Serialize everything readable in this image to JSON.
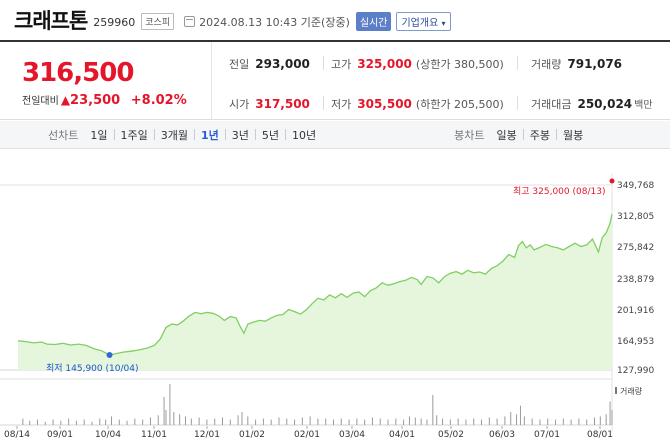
{
  "header": {
    "name": "크래프톤",
    "code": "259960",
    "market": "코스피",
    "datetime": "2024.08.13 10:43 기준(장중)",
    "realtime_label": "실시간",
    "overview_label": "기업개요"
  },
  "price": {
    "current": "316,500",
    "change_label": "전일대비",
    "change_arrow": "▲",
    "change_value": "23,500",
    "change_pct": "+8.02%"
  },
  "stats": {
    "prev_label": "전일",
    "prev_value": "293,000",
    "high_label": "고가",
    "high_value": "325,000",
    "upper_limit": "(상한가 380,500)",
    "volume_label": "거래량",
    "volume_value": "791,076",
    "open_label": "시가",
    "open_value": "317,500",
    "low_label": "저가",
    "low_value": "305,500",
    "lower_limit": "(하한가 205,500)",
    "amount_label": "거래대금",
    "amount_value": "250,024",
    "amount_unit": "백만"
  },
  "tabs": {
    "line_label": "선차트",
    "periods": [
      "1일",
      "1주일",
      "3개월",
      "1년",
      "3년",
      "5년",
      "10년"
    ],
    "active": "1년",
    "candle_label": "봉차트",
    "candles": [
      "일봉",
      "주봉",
      "월봉"
    ]
  },
  "colors": {
    "up": "#e4162b",
    "down": "#1a57c9",
    "line": "#7fcf63",
    "fill": "#e6f6dc"
  },
  "chart_data": {
    "type": "area",
    "yticks": [
      "349,768",
      "312,805",
      "275,842",
      "238,879",
      "201,916",
      "164,953",
      "127,990"
    ],
    "ylim": [
      127990,
      349768
    ],
    "xticks": [
      "08/14",
      "09/01",
      "10/04",
      "11/01",
      "12/01",
      "01/02",
      "02/01",
      "03/04",
      "04/01",
      "05/02",
      "06/03",
      "07/01",
      "08/01"
    ],
    "annotations": {
      "high": "최고 325,000 (08/13)",
      "low": "최저 145,900 (10/04)"
    },
    "volume_label": "거래량",
    "series": [
      {
        "values": [
          [
            0,
            163000
          ],
          [
            8,
            162000
          ],
          [
            16,
            160500
          ],
          [
            24,
            161500
          ],
          [
            30,
            159000
          ],
          [
            38,
            158500
          ],
          [
            46,
            160000
          ],
          [
            54,
            158000
          ],
          [
            62,
            159000
          ],
          [
            70,
            157500
          ],
          [
            78,
            153500
          ],
          [
            86,
            151000
          ],
          [
            94,
            146000
          ],
          [
            100,
            147500
          ],
          [
            108,
            149500
          ],
          [
            116,
            150500
          ],
          [
            124,
            152000
          ],
          [
            132,
            154000
          ],
          [
            140,
            157500
          ],
          [
            146,
            165000
          ],
          [
            152,
            179000
          ],
          [
            158,
            183000
          ],
          [
            164,
            182000
          ],
          [
            170,
            187000
          ],
          [
            176,
            193000
          ],
          [
            182,
            197000
          ],
          [
            188,
            195500
          ],
          [
            194,
            197000
          ],
          [
            200,
            196000
          ],
          [
            206,
            193000
          ],
          [
            212,
            187500
          ],
          [
            218,
            192000
          ],
          [
            224,
            190500
          ],
          [
            228,
            180500
          ],
          [
            232,
            172000
          ],
          [
            236,
            183000
          ],
          [
            242,
            185500
          ],
          [
            248,
            187500
          ],
          [
            254,
            186500
          ],
          [
            260,
            190500
          ],
          [
            266,
            193500
          ],
          [
            272,
            194500
          ],
          [
            278,
            200500
          ],
          [
            284,
            198000
          ],
          [
            290,
            195000
          ],
          [
            296,
            200000
          ],
          [
            302,
            207500
          ],
          [
            308,
            214000
          ],
          [
            314,
            212000
          ],
          [
            320,
            218000
          ],
          [
            326,
            214500
          ],
          [
            332,
            219500
          ],
          [
            338,
            215000
          ],
          [
            344,
            220000
          ],
          [
            350,
            221500
          ],
          [
            356,
            216000
          ],
          [
            362,
            223000
          ],
          [
            368,
            226500
          ],
          [
            374,
            232500
          ],
          [
            380,
            229500
          ],
          [
            386,
            231500
          ],
          [
            392,
            234000
          ],
          [
            398,
            235500
          ],
          [
            404,
            239000
          ],
          [
            410,
            236500
          ],
          [
            414,
            230500
          ],
          [
            420,
            240000
          ],
          [
            426,
            238500
          ],
          [
            432,
            232500
          ],
          [
            438,
            240000
          ],
          [
            444,
            244000
          ],
          [
            450,
            246000
          ],
          [
            456,
            243000
          ],
          [
            462,
            247500
          ],
          [
            468,
            244500
          ],
          [
            474,
            245500
          ],
          [
            480,
            243000
          ],
          [
            486,
            249500
          ],
          [
            492,
            253000
          ],
          [
            498,
            258500
          ],
          [
            504,
            266500
          ],
          [
            510,
            263000
          ],
          [
            514,
            277000
          ],
          [
            518,
            282000
          ],
          [
            522,
            274500
          ],
          [
            526,
            278000
          ],
          [
            530,
            272000
          ],
          [
            536,
            275000
          ],
          [
            542,
            278500
          ],
          [
            548,
            276000
          ],
          [
            554,
            274500
          ],
          [
            560,
            272000
          ],
          [
            566,
            276000
          ],
          [
            572,
            280000
          ],
          [
            578,
            276000
          ],
          [
            584,
            278000
          ],
          [
            590,
            285000
          ],
          [
            596,
            269500
          ],
          [
            600,
            287000
          ],
          [
            604,
            292500
          ],
          [
            608,
            304000
          ],
          [
            610,
            315000
          ]
        ]
      }
    ],
    "volume": [
      [
        5,
        6
      ],
      [
        12,
        4
      ],
      [
        20,
        5
      ],
      [
        28,
        3
      ],
      [
        36,
        5
      ],
      [
        44,
        4
      ],
      [
        52,
        6
      ],
      [
        60,
        4
      ],
      [
        68,
        5
      ],
      [
        76,
        3
      ],
      [
        84,
        6
      ],
      [
        90,
        5
      ],
      [
        96,
        8
      ],
      [
        104,
        5
      ],
      [
        112,
        4
      ],
      [
        120,
        6
      ],
      [
        128,
        5
      ],
      [
        136,
        7
      ],
      [
        144,
        9
      ],
      [
        150,
        26
      ],
      [
        152,
        14
      ],
      [
        156,
        38
      ],
      [
        160,
        12
      ],
      [
        166,
        10
      ],
      [
        172,
        8
      ],
      [
        178,
        6
      ],
      [
        186,
        7
      ],
      [
        194,
        5
      ],
      [
        202,
        6
      ],
      [
        210,
        7
      ],
      [
        218,
        5
      ],
      [
        226,
        9
      ],
      [
        230,
        12
      ],
      [
        236,
        8
      ],
      [
        244,
        5
      ],
      [
        252,
        6
      ],
      [
        260,
        5
      ],
      [
        268,
        7
      ],
      [
        276,
        6
      ],
      [
        284,
        5
      ],
      [
        292,
        7
      ],
      [
        300,
        8
      ],
      [
        308,
        6
      ],
      [
        316,
        6
      ],
      [
        324,
        5
      ],
      [
        332,
        6
      ],
      [
        340,
        5
      ],
      [
        348,
        6
      ],
      [
        356,
        5
      ],
      [
        364,
        7
      ],
      [
        372,
        6
      ],
      [
        380,
        5
      ],
      [
        388,
        6
      ],
      [
        396,
        5
      ],
      [
        402,
        8
      ],
      [
        408,
        7
      ],
      [
        414,
        6
      ],
      [
        420,
        5
      ],
      [
        426,
        28
      ],
      [
        430,
        9
      ],
      [
        436,
        6
      ],
      [
        444,
        5
      ],
      [
        452,
        6
      ],
      [
        460,
        5
      ],
      [
        468,
        6
      ],
      [
        476,
        5
      ],
      [
        484,
        7
      ],
      [
        492,
        6
      ],
      [
        500,
        8
      ],
      [
        506,
        12
      ],
      [
        512,
        10
      ],
      [
        516,
        18
      ],
      [
        520,
        8
      ],
      [
        528,
        6
      ],
      [
        536,
        5
      ],
      [
        544,
        6
      ],
      [
        552,
        5
      ],
      [
        560,
        6
      ],
      [
        568,
        5
      ],
      [
        576,
        6
      ],
      [
        584,
        5
      ],
      [
        592,
        7
      ],
      [
        598,
        8
      ],
      [
        604,
        10
      ],
      [
        608,
        22
      ],
      [
        610,
        14
      ]
    ]
  }
}
